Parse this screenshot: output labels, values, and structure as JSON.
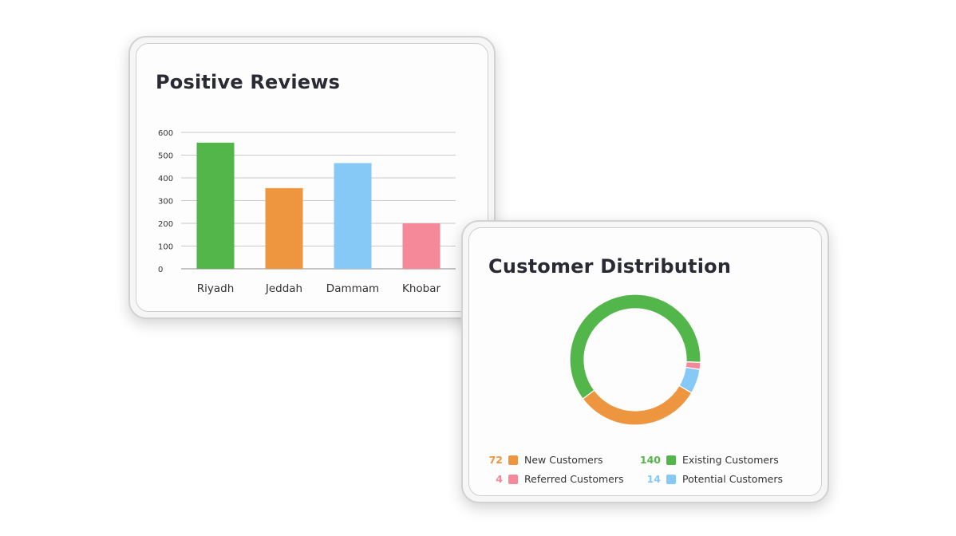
{
  "reviews_card": {
    "title": "Positive Reviews"
  },
  "distribution_card": {
    "title": "Customer Distribution"
  },
  "chart_data": [
    {
      "type": "bar",
      "title": "Positive Reviews",
      "categories": [
        "Riyadh",
        "Jeddah",
        "Dammam",
        "Khobar"
      ],
      "values": [
        555,
        355,
        465,
        200
      ],
      "colors": [
        "#52b64a",
        "#ed963f",
        "#86c9f7",
        "#f5899a"
      ],
      "ylim": [
        0,
        600
      ],
      "yticks": [
        "0",
        "100",
        "200",
        "300",
        "400",
        "500",
        "600"
      ],
      "grid": true,
      "xlabel": "",
      "ylabel": ""
    },
    {
      "type": "pie",
      "style": "donut",
      "title": "Customer Distribution",
      "slices": [
        {
          "label": "New Customers",
          "value": 72,
          "color": "#ed963f"
        },
        {
          "label": "Existing Customers",
          "value": 140,
          "color": "#52b64a"
        },
        {
          "label": "Referred Customers",
          "value": 4,
          "color": "#f5899a"
        },
        {
          "label": "Potential Customers",
          "value": 14,
          "color": "#86c9f7"
        }
      ],
      "legend_position": "bottom"
    }
  ]
}
